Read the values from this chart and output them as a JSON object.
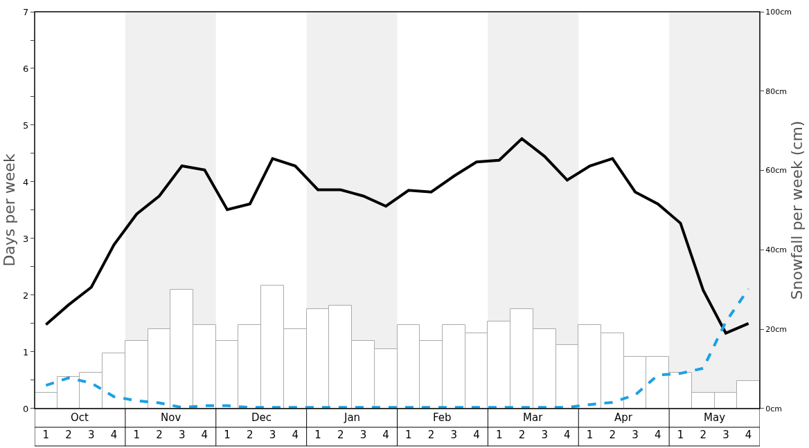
{
  "chart_data": {
    "type": "bar",
    "ylabel": "Days per week",
    "y2label": "Snowfall per week (cm)",
    "categories": [
      "1",
      "2",
      "3",
      "4",
      "1",
      "2",
      "3",
      "4",
      "1",
      "2",
      "3",
      "4",
      "1",
      "2",
      "3",
      "4",
      "1",
      "2",
      "3",
      "4",
      "1",
      "2",
      "3",
      "4",
      "1",
      "2",
      "3",
      "4",
      "1",
      "2",
      "3",
      "4"
    ],
    "series": [
      {
        "axis": "y2",
        "color": "#ffffff",
        "values": [
          4,
          8,
          9,
          14,
          17,
          20,
          30,
          21,
          17,
          21,
          31,
          20,
          25,
          26,
          17,
          15,
          21,
          17,
          21,
          19,
          22,
          25,
          20,
          16,
          21,
          19,
          13,
          13,
          9,
          4,
          4,
          7
        ]
      },
      {
        "type": "line",
        "color": "#000000",
        "line_style": "solid",
        "values": [
          1.48,
          1.83,
          2.14,
          2.89,
          3.43,
          3.75,
          4.28,
          4.21,
          3.51,
          3.61,
          4.41,
          4.28,
          3.86,
          3.86,
          3.75,
          3.57,
          3.85,
          3.82,
          4.1,
          4.35,
          4.38,
          4.76,
          4.45,
          4.03,
          4.28,
          4.41,
          3.82,
          3.61,
          3.27,
          2.09,
          1.33,
          1.5
        ]
      },
      {
        "type": "line",
        "color": "#1ba1e2",
        "line_style": "dashed",
        "values": [
          0.41,
          0.54,
          0.45,
          0.21,
          0.14,
          0.1,
          0.02,
          0.05,
          0.05,
          0.02,
          0.02,
          0.02,
          0.02,
          0.02,
          0.02,
          0.02,
          0.02,
          0.02,
          0.02,
          0.02,
          0.02,
          0.02,
          0.02,
          0.02,
          0.07,
          0.11,
          0.24,
          0.59,
          0.62,
          0.71,
          1.53,
          2.11
        ]
      }
    ],
    "annotations": [
      "Oct",
      "Nov",
      "Dec",
      "Jan",
      "Feb",
      "Mar",
      "Apr",
      "May"
    ],
    "ylim": [
      0,
      7
    ],
    "yticks": [
      0,
      {
        "value": 0.5,
        "label": null
      },
      1,
      {
        "value": 1.5,
        "label": null
      },
      2,
      {
        "value": 2.5,
        "label": null
      },
      3,
      {
        "value": 3.5,
        "label": null
      },
      4,
      {
        "value": 4.5,
        "label": null
      },
      5,
      {
        "value": 5.5,
        "label": null
      },
      6,
      {
        "value": 6.5,
        "label": null
      },
      7
    ],
    "y2lim": [
      0,
      100
    ],
    "y2ticks": [
      {
        "value": 0,
        "label": "0cm"
      },
      {
        "value": 20,
        "label": "20cm"
      },
      {
        "value": 40,
        "label": "40cm"
      },
      {
        "value": 60,
        "label": "60cm"
      },
      {
        "value": 80,
        "label": "80cm"
      },
      {
        "value": 100,
        "label": "100cm"
      }
    ],
    "grid": false
  }
}
